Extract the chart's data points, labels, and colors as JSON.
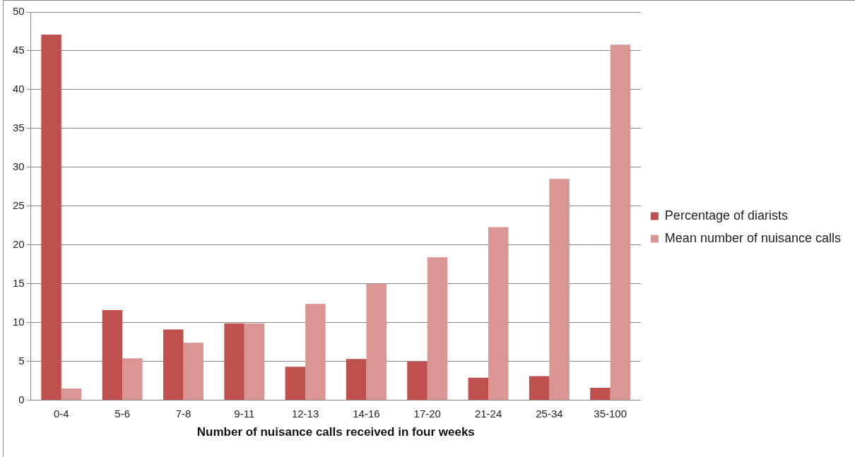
{
  "chart_data": {
    "type": "bar",
    "xlabel": "Number of nuisance calls received in four weeks",
    "categories": [
      "0-4",
      "5-6",
      "7-8",
      "9-11",
      "12-13",
      "14-16",
      "17-20",
      "21-24",
      "25-34",
      "35-100"
    ],
    "series": [
      {
        "name": "Percentage of diarists",
        "color": "#c0504d",
        "values": [
          47.1,
          11.6,
          9.1,
          9.9,
          4.3,
          5.3,
          5.0,
          2.9,
          3.1,
          1.6
        ]
      },
      {
        "name": "Mean number of nuisance calls",
        "color": "#d99694",
        "values": [
          1.5,
          5.4,
          7.4,
          9.9,
          12.4,
          15.0,
          18.4,
          22.3,
          28.5,
          45.8
        ]
      }
    ],
    "ylim": [
      0,
      50
    ],
    "yticks": [
      0,
      5,
      10,
      15,
      20,
      25,
      30,
      35,
      40,
      45,
      50
    ],
    "grid": "y",
    "legend": "right"
  }
}
